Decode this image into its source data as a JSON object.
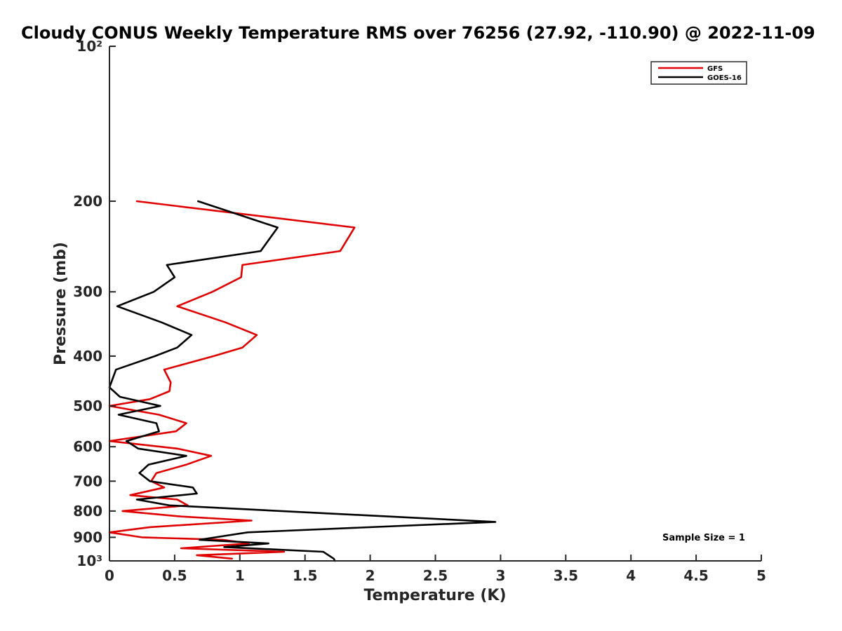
{
  "chart_data": {
    "type": "line",
    "title": "Cloudy CONUS Weekly Temperature RMS over 76256 (27.92, -110.90) @ 2022-11-09",
    "xlabel": "Temperature (K)",
    "ylabel": "Pressure (mb)",
    "xlim": [
      0,
      5
    ],
    "ylim": [
      100,
      1000
    ],
    "yscale": "log",
    "y_reversed": true,
    "x_ticks": [
      0,
      0.5,
      1,
      1.5,
      2,
      2.5,
      3,
      3.5,
      4,
      4.5,
      5
    ],
    "x_tick_labels": [
      "0",
      "0.5",
      "1",
      "1.5",
      "2",
      "2.5",
      "3",
      "3.5",
      "4",
      "4.5",
      "5"
    ],
    "y_ticks": [
      100,
      200,
      300,
      400,
      500,
      600,
      700,
      800,
      900,
      1000
    ],
    "y_tick_labels": [
      "10²",
      "200",
      "300",
      "400",
      "500",
      "600",
      "700",
      "800",
      "900",
      "10³"
    ],
    "legend": {
      "placement": "top-right",
      "entries": [
        "GFS",
        "GOES-16"
      ]
    },
    "annotation": "Sample Size = 1",
    "series": [
      {
        "name": "GFS",
        "color": "#e00000",
        "points": [
          [
            0.21,
            200
          ],
          [
            1.88,
            225
          ],
          [
            1.77,
            250
          ],
          [
            1.02,
            266
          ],
          [
            1.01,
            281
          ],
          [
            0.79,
            300
          ],
          [
            0.52,
            320
          ],
          [
            0.89,
            344
          ],
          [
            1.13,
            364
          ],
          [
            1.02,
            385
          ],
          [
            0.8,
            400
          ],
          [
            0.42,
            425
          ],
          [
            0.47,
            450
          ],
          [
            0.46,
            468
          ],
          [
            0.31,
            485
          ],
          [
            0.0,
            500
          ],
          [
            0.38,
            520
          ],
          [
            0.59,
            540
          ],
          [
            0.51,
            560
          ],
          [
            0.0,
            585
          ],
          [
            0.52,
            605
          ],
          [
            0.78,
            625
          ],
          [
            0.59,
            650
          ],
          [
            0.36,
            675
          ],
          [
            0.32,
            700
          ],
          [
            0.42,
            720
          ],
          [
            0.16,
            745
          ],
          [
            0.52,
            760
          ],
          [
            0.6,
            780
          ],
          [
            0.1,
            800
          ],
          [
            0.55,
            820
          ],
          [
            1.09,
            835
          ],
          [
            0.31,
            860
          ],
          [
            0.0,
            880
          ],
          [
            0.25,
            900
          ],
          [
            0.87,
            910
          ],
          [
            1.07,
            925
          ],
          [
            0.55,
            945
          ],
          [
            1.34,
            960
          ],
          [
            0.67,
            975
          ],
          [
            0.94,
            990
          ]
        ]
      },
      {
        "name": "GOES-16",
        "color": "#000000",
        "points": [
          [
            0.68,
            200
          ],
          [
            1.29,
            225
          ],
          [
            1.16,
            250
          ],
          [
            0.44,
            266
          ],
          [
            0.5,
            281
          ],
          [
            0.34,
            300
          ],
          [
            0.06,
            320
          ],
          [
            0.4,
            344
          ],
          [
            0.63,
            364
          ],
          [
            0.52,
            385
          ],
          [
            0.35,
            400
          ],
          [
            0.05,
            425
          ],
          [
            0.0,
            460
          ],
          [
            0.08,
            480
          ],
          [
            0.39,
            500
          ],
          [
            0.07,
            520
          ],
          [
            0.36,
            540
          ],
          [
            0.38,
            560
          ],
          [
            0.13,
            585
          ],
          [
            0.22,
            605
          ],
          [
            0.59,
            625
          ],
          [
            0.3,
            650
          ],
          [
            0.23,
            675
          ],
          [
            0.31,
            700
          ],
          [
            0.64,
            720
          ],
          [
            0.67,
            740
          ],
          [
            0.21,
            760
          ],
          [
            0.46,
            780
          ],
          [
            2.96,
            840
          ],
          [
            1.06,
            880
          ],
          [
            0.69,
            910
          ],
          [
            1.22,
            925
          ],
          [
            0.88,
            940
          ],
          [
            1.64,
            960
          ],
          [
            1.72,
            990
          ],
          [
            1.73,
            1000
          ]
        ]
      }
    ]
  }
}
